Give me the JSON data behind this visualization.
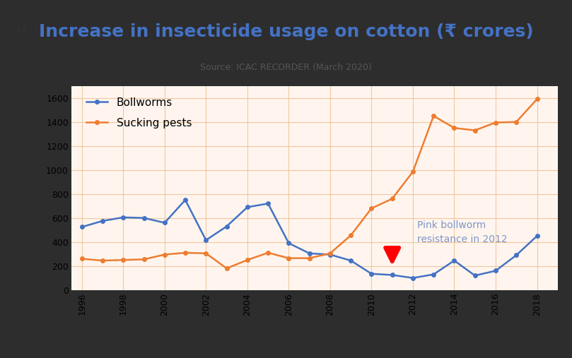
{
  "title": "Increase in insecticide usage on cotton (₹ crores)",
  "slide_number": "19",
  "source": "Source: ICAC RECORDER (March 2020)",
  "years": [
    1996,
    1997,
    1998,
    1999,
    2000,
    2001,
    2002,
    2003,
    2004,
    2005,
    2006,
    2007,
    2008,
    2009,
    2010,
    2011,
    2012,
    2013,
    2014,
    2015,
    2016,
    2017,
    2018
  ],
  "bollworms": [
    525,
    575,
    605,
    600,
    560,
    750,
    415,
    530,
    690,
    720,
    390,
    305,
    295,
    245,
    135,
    125,
    100,
    130,
    245,
    120,
    160,
    290,
    450
  ],
  "sucking_pests": [
    260,
    245,
    250,
    255,
    295,
    310,
    305,
    180,
    250,
    310,
    265,
    265,
    305,
    455,
    680,
    760,
    985,
    1450,
    1350,
    1330,
    1395,
    1400,
    1590
  ],
  "bollworm_color": "#4472C4",
  "sucking_color": "#ED7D31",
  "annotation_text": "Pink bollworm\nresistance in 2012",
  "annotation_color": "#7f96c8",
  "bg_color": "#2d2d2d",
  "slide_bg_color": "#FFFFFF",
  "plot_bg_color": "#FFF5EE",
  "grid_color": "#F0C8A0",
  "ylim": [
    0,
    1700
  ],
  "yticks": [
    0,
    200,
    400,
    600,
    800,
    1000,
    1200,
    1400,
    1600
  ],
  "title_color": "#4472C4",
  "title_fontsize": 18,
  "source_fontsize": 9,
  "legend_fontsize": 11,
  "tick_fontsize": 9,
  "marker": "o",
  "markersize": 4,
  "linewidth": 1.8
}
